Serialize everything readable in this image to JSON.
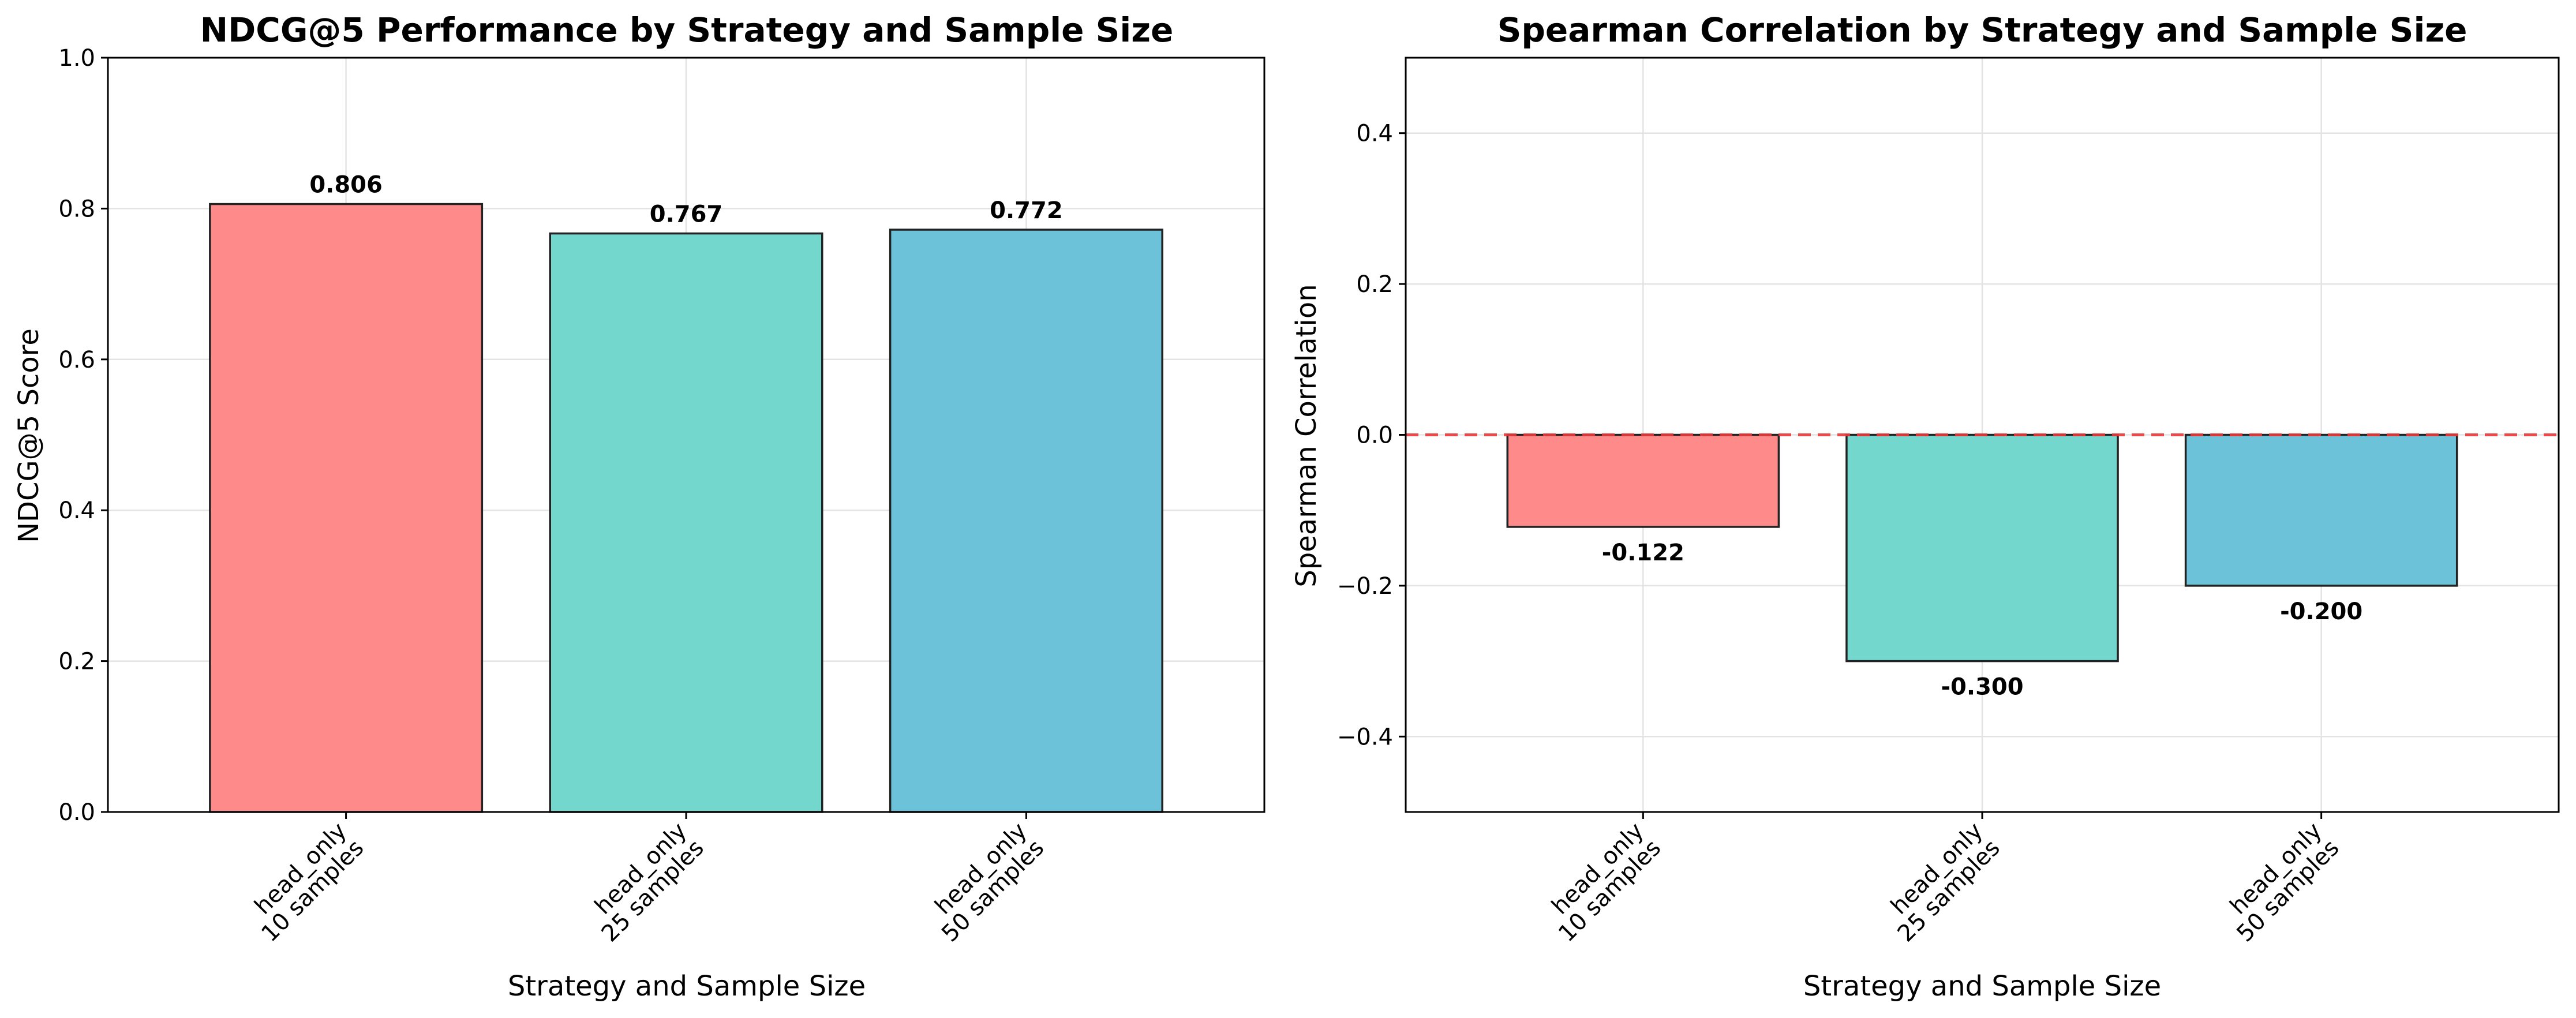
{
  "chart_data": [
    {
      "type": "bar",
      "title": "NDCG@5 Performance by Strategy and Sample Size",
      "xlabel": "Strategy and Sample Size",
      "ylabel": "NDCG@5 Score",
      "categories": [
        [
          "head_only",
          "10 samples"
        ],
        [
          "head_only",
          "25 samples"
        ],
        [
          "head_only",
          "50 samples"
        ]
      ],
      "values": [
        0.806,
        0.767,
        0.772
      ],
      "value_labels": [
        "0.806",
        "0.767",
        "0.772"
      ],
      "ylim": [
        0,
        1.0
      ],
      "yticks": [
        0.0,
        0.2,
        0.4,
        0.6,
        0.8,
        1.0
      ],
      "ytick_labels": [
        "0.0",
        "0.2",
        "0.4",
        "0.6",
        "0.8",
        "1.0"
      ],
      "colors": [
        "#ff8a8a",
        "#73d7cd",
        "#6cc2d9"
      ],
      "grid": true
    },
    {
      "type": "bar",
      "title": "Spearman Correlation by Strategy and Sample Size",
      "xlabel": "Strategy and Sample Size",
      "ylabel": "Spearman Correlation",
      "categories": [
        [
          "head_only",
          "10 samples"
        ],
        [
          "head_only",
          "25 samples"
        ],
        [
          "head_only",
          "50 samples"
        ]
      ],
      "values": [
        -0.122,
        -0.3,
        -0.2
      ],
      "value_labels": [
        "-0.122",
        "-0.300",
        "-0.200"
      ],
      "ylim": [
        -0.5,
        0.5
      ],
      "yticks": [
        -0.4,
        -0.2,
        0.0,
        0.2,
        0.4
      ],
      "ytick_labels": [
        "−0.4",
        "−0.2",
        "0.0",
        "0.2",
        "0.4"
      ],
      "colors": [
        "#ff8a8a",
        "#73d7cd",
        "#6cc2d9"
      ],
      "reference_line": {
        "y": 0,
        "color": "#e83a3a",
        "style": "dashed"
      },
      "grid": true
    }
  ]
}
